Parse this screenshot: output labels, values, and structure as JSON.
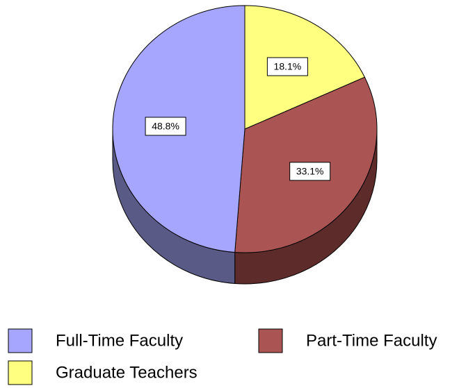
{
  "chart_data": {
    "type": "pie",
    "categories": [
      "Graduate Teachers",
      "Part-Time Faculty",
      "Full-Time Faculty"
    ],
    "values": [
      18.1,
      33.1,
      48.8
    ],
    "value_labels": [
      "18.1%",
      "33.1%",
      "48.8%"
    ],
    "colors": [
      "#ffff80",
      "#aa5553",
      "#a6a6ff"
    ],
    "side_colors": [
      "#8a8a30",
      "#5e2b2b",
      "#5a5a86"
    ],
    "legend": "bottom"
  }
}
